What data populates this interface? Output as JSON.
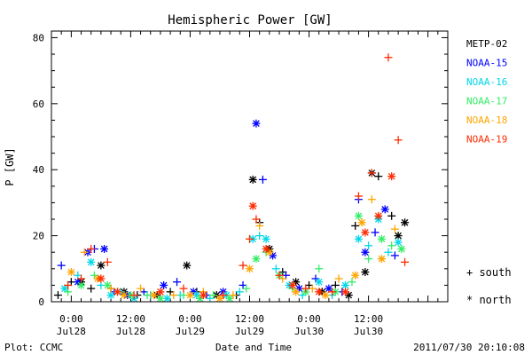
{
  "chart_data": {
    "type": "scatter",
    "title": "Hemispheric Power [GW]",
    "ylabel": "P [GW]",
    "xlabel": "Date and Time",
    "ylim": [
      0,
      82
    ],
    "yticks": [
      0,
      20,
      40,
      60,
      80
    ],
    "xlim_hours": [
      -6,
      114
    ],
    "xticks": [
      {
        "t": 0,
        "top": "0:00",
        "bottom": "Jul28"
      },
      {
        "t": 18,
        "top": "12:00",
        "bottom": "Jul28"
      },
      {
        "t": 36,
        "top": "0:00",
        "bottom": "Jul29"
      },
      {
        "t": 54,
        "top": "12:00",
        "bottom": "Jul29"
      },
      {
        "t": 72,
        "top": "0:00",
        "bottom": "Jul30"
      },
      {
        "t": 90,
        "top": "12:00",
        "bottom": "Jul30"
      }
    ],
    "series": [
      {
        "name": "METP-02",
        "color": "#000000"
      },
      {
        "name": "NOAA-15",
        "color": "#0000ff"
      },
      {
        "name": "NOAA-16",
        "color": "#00d8e8"
      },
      {
        "name": "NOAA-17",
        "color": "#33ee66"
      },
      {
        "name": "NOAA-18",
        "color": "#ffa500"
      },
      {
        "name": "NOAA-19",
        "color": "#ff2a00"
      }
    ],
    "markers": [
      {
        "symbol": "+",
        "label": "south"
      },
      {
        "symbol": "*",
        "label": "north"
      }
    ],
    "points": [
      [
        0,
        -4,
        2,
        "+"
      ],
      [
        0,
        0,
        6,
        "+"
      ],
      [
        0,
        3,
        6,
        "*"
      ],
      [
        0,
        6,
        4,
        "+"
      ],
      [
        0,
        9,
        11,
        "*"
      ],
      [
        0,
        12,
        4,
        "+"
      ],
      [
        0,
        16,
        3,
        "*"
      ],
      [
        0,
        20,
        2,
        "+"
      ],
      [
        0,
        26,
        2,
        "*"
      ],
      [
        0,
        30,
        3,
        "+"
      ],
      [
        0,
        35,
        11,
        "*"
      ],
      [
        0,
        38,
        3,
        "+"
      ],
      [
        0,
        44,
        2,
        "*"
      ],
      [
        0,
        50,
        2,
        "+"
      ],
      [
        0,
        55,
        37,
        "*"
      ],
      [
        0,
        57,
        24,
        "+"
      ],
      [
        0,
        60,
        16,
        "*"
      ],
      [
        0,
        64,
        9,
        "+"
      ],
      [
        0,
        68,
        6,
        "*"
      ],
      [
        0,
        72,
        5,
        "+"
      ],
      [
        0,
        76,
        3,
        "*"
      ],
      [
        0,
        80,
        5,
        "+"
      ],
      [
        0,
        84,
        2,
        "*"
      ],
      [
        0,
        86,
        23,
        "+"
      ],
      [
        0,
        89,
        9,
        "*"
      ],
      [
        0,
        91,
        39,
        "*"
      ],
      [
        0,
        93,
        38,
        "+"
      ],
      [
        0,
        97,
        26,
        "+"
      ],
      [
        0,
        99,
        20,
        "*"
      ],
      [
        0,
        101,
        24,
        "*"
      ],
      [
        1,
        -3,
        11,
        "+"
      ],
      [
        1,
        2,
        6,
        "*"
      ],
      [
        1,
        5,
        15,
        "*"
      ],
      [
        1,
        7,
        16,
        "+"
      ],
      [
        1,
        10,
        16,
        "*"
      ],
      [
        1,
        13,
        3,
        "+"
      ],
      [
        1,
        17,
        2,
        "*"
      ],
      [
        1,
        22,
        3,
        "+"
      ],
      [
        1,
        28,
        5,
        "*"
      ],
      [
        1,
        32,
        6,
        "+"
      ],
      [
        1,
        37,
        3,
        "*"
      ],
      [
        1,
        41,
        2,
        "+"
      ],
      [
        1,
        46,
        3,
        "*"
      ],
      [
        1,
        52,
        5,
        "+"
      ],
      [
        1,
        56,
        54,
        "*"
      ],
      [
        1,
        58,
        37,
        "+"
      ],
      [
        1,
        61,
        14,
        "*"
      ],
      [
        1,
        65,
        8,
        "+"
      ],
      [
        1,
        69,
        4,
        "*"
      ],
      [
        1,
        74,
        7,
        "+"
      ],
      [
        1,
        78,
        4,
        "*"
      ],
      [
        1,
        82,
        3,
        "+"
      ],
      [
        1,
        87,
        31,
        "+"
      ],
      [
        1,
        89,
        15,
        "*"
      ],
      [
        1,
        92,
        21,
        "+"
      ],
      [
        1,
        95,
        28,
        "*"
      ],
      [
        1,
        98,
        14,
        "+"
      ],
      [
        2,
        -2,
        4,
        "*"
      ],
      [
        2,
        2,
        8,
        "+"
      ],
      [
        2,
        6,
        12,
        "*"
      ],
      [
        2,
        9,
        5,
        "+"
      ],
      [
        2,
        12,
        2,
        "*"
      ],
      [
        2,
        15,
        3,
        "+"
      ],
      [
        2,
        19,
        1,
        "*"
      ],
      [
        2,
        24,
        2,
        "+"
      ],
      [
        2,
        29,
        1,
        "*"
      ],
      [
        2,
        33,
        2,
        "+"
      ],
      [
        2,
        38,
        2,
        "*"
      ],
      [
        2,
        42,
        1,
        "+"
      ],
      [
        2,
        47,
        2,
        "*"
      ],
      [
        2,
        51,
        3,
        "+"
      ],
      [
        2,
        55,
        19,
        "*"
      ],
      [
        2,
        57,
        20,
        "+"
      ],
      [
        2,
        59,
        19,
        "*"
      ],
      [
        2,
        62,
        10,
        "+"
      ],
      [
        2,
        66,
        5,
        "*"
      ],
      [
        2,
        70,
        2,
        "+"
      ],
      [
        2,
        75,
        6,
        "*"
      ],
      [
        2,
        79,
        2,
        "+"
      ],
      [
        2,
        83,
        5,
        "*"
      ],
      [
        2,
        87,
        19,
        "*"
      ],
      [
        2,
        90,
        17,
        "+"
      ],
      [
        2,
        93,
        25,
        "*"
      ],
      [
        2,
        96,
        15,
        "+"
      ],
      [
        2,
        99,
        18,
        "*"
      ],
      [
        3,
        -1,
        3,
        "+"
      ],
      [
        3,
        3,
        5,
        "*"
      ],
      [
        3,
        7,
        8,
        "+"
      ],
      [
        3,
        11,
        5,
        "*"
      ],
      [
        3,
        14,
        3,
        "+"
      ],
      [
        3,
        18,
        2,
        "*"
      ],
      [
        3,
        23,
        2,
        "+"
      ],
      [
        3,
        27,
        1,
        "*"
      ],
      [
        3,
        34,
        2,
        "+"
      ],
      [
        3,
        39,
        1,
        "*"
      ],
      [
        3,
        43,
        2,
        "+"
      ],
      [
        3,
        48,
        1,
        "*"
      ],
      [
        3,
        53,
        4,
        "+"
      ],
      [
        3,
        56,
        13,
        "*"
      ],
      [
        3,
        59,
        15,
        "+"
      ],
      [
        3,
        63,
        8,
        "*"
      ],
      [
        3,
        67,
        4,
        "+"
      ],
      [
        3,
        71,
        3,
        "*"
      ],
      [
        3,
        75,
        10,
        "+"
      ],
      [
        3,
        80,
        3,
        "*"
      ],
      [
        3,
        85,
        6,
        "+"
      ],
      [
        3,
        87,
        26,
        "*"
      ],
      [
        3,
        90,
        13,
        "+"
      ],
      [
        3,
        94,
        19,
        "*"
      ],
      [
        3,
        97,
        17,
        "+"
      ],
      [
        3,
        100,
        16,
        "*"
      ],
      [
        4,
        0,
        9,
        "*"
      ],
      [
        4,
        4,
        15,
        "+"
      ],
      [
        4,
        8,
        7,
        "*"
      ],
      [
        4,
        12,
        4,
        "+"
      ],
      [
        4,
        16,
        2,
        "*"
      ],
      [
        4,
        21,
        4,
        "+"
      ],
      [
        4,
        25,
        2,
        "*"
      ],
      [
        4,
        31,
        2,
        "+"
      ],
      [
        4,
        36,
        2,
        "*"
      ],
      [
        4,
        40,
        3,
        "+"
      ],
      [
        4,
        45,
        1,
        "*"
      ],
      [
        4,
        49,
        2,
        "+"
      ],
      [
        4,
        54,
        10,
        "*"
      ],
      [
        4,
        57,
        23,
        "+"
      ],
      [
        4,
        60,
        15,
        "*"
      ],
      [
        4,
        64,
        7,
        "+"
      ],
      [
        4,
        68,
        3,
        "*"
      ],
      [
        4,
        73,
        4,
        "+"
      ],
      [
        4,
        77,
        2,
        "*"
      ],
      [
        4,
        81,
        7,
        "+"
      ],
      [
        4,
        86,
        8,
        "*"
      ],
      [
        4,
        88,
        24,
        "*"
      ],
      [
        4,
        91,
        31,
        "+"
      ],
      [
        4,
        94,
        13,
        "*"
      ],
      [
        4,
        98,
        22,
        "+"
      ],
      [
        5,
        -1,
        5,
        "+"
      ],
      [
        5,
        3,
        7,
        "+"
      ],
      [
        5,
        6,
        16,
        "+"
      ],
      [
        5,
        9,
        7,
        "*"
      ],
      [
        5,
        11,
        12,
        "+"
      ],
      [
        5,
        14,
        3,
        "*"
      ],
      [
        5,
        19,
        2,
        "+"
      ],
      [
        5,
        27,
        3,
        "*"
      ],
      [
        5,
        34,
        4,
        "+"
      ],
      [
        5,
        40,
        2,
        "*"
      ],
      [
        5,
        46,
        2,
        "+"
      ],
      [
        5,
        52,
        11,
        "+"
      ],
      [
        5,
        54,
        19,
        "+"
      ],
      [
        5,
        55,
        29,
        "*"
      ],
      [
        5,
        56,
        25,
        "+"
      ],
      [
        5,
        59,
        16,
        "*"
      ],
      [
        5,
        63,
        8,
        "+"
      ],
      [
        5,
        67,
        5,
        "*"
      ],
      [
        5,
        71,
        4,
        "+"
      ],
      [
        5,
        75,
        3,
        "*"
      ],
      [
        5,
        79,
        3,
        "+"
      ],
      [
        5,
        83,
        3,
        "*"
      ],
      [
        5,
        87,
        32,
        "+"
      ],
      [
        5,
        89,
        21,
        "*"
      ],
      [
        5,
        91,
        39,
        "+"
      ],
      [
        5,
        93,
        26,
        "*"
      ],
      [
        5,
        96,
        74,
        "+"
      ],
      [
        5,
        97,
        38,
        "*"
      ],
      [
        5,
        99,
        49,
        "+"
      ],
      [
        5,
        101,
        12,
        "+"
      ]
    ]
  },
  "footer": {
    "left": "Plot: CCMC",
    "right": "2011/07/30 20:10:08"
  }
}
